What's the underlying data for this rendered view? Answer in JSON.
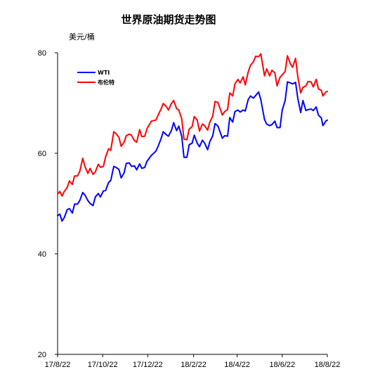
{
  "chart_data": {
    "type": "line",
    "title": "世界原油期货走势图",
    "ylabel": "美元/桶",
    "xlabel": "",
    "ylim": [
      20,
      80
    ],
    "yticks": [
      20,
      40,
      60,
      80
    ],
    "xticks": [
      "17/8/22",
      "17/10/22",
      "17/12/22",
      "18/2/22",
      "18/4/22",
      "18/6/22",
      "18/8/22"
    ],
    "grid": false,
    "legend_position": "top-left",
    "series": [
      {
        "name": "WTI",
        "color": "#0000ff",
        "points": [
          [
            "2017-08-22",
            47.6
          ],
          [
            "2017-08-25",
            47.9
          ],
          [
            "2017-08-28",
            46.5
          ],
          [
            "2017-08-31",
            47.2
          ],
          [
            "2017-09-04",
            48.8
          ],
          [
            "2017-09-07",
            49.0
          ],
          [
            "2017-09-11",
            48.1
          ],
          [
            "2017-09-14",
            49.9
          ],
          [
            "2017-09-18",
            49.9
          ],
          [
            "2017-09-21",
            50.6
          ],
          [
            "2017-09-25",
            52.2
          ],
          [
            "2017-09-28",
            51.7
          ],
          [
            "2017-10-02",
            50.6
          ],
          [
            "2017-10-05",
            50.0
          ],
          [
            "2017-10-09",
            49.6
          ],
          [
            "2017-10-12",
            51.3
          ],
          [
            "2017-10-16",
            52.0
          ],
          [
            "2017-10-19",
            51.3
          ],
          [
            "2017-10-23",
            52.5
          ],
          [
            "2017-10-26",
            52.6
          ],
          [
            "2017-10-30",
            54.2
          ],
          [
            "2017-11-02",
            54.6
          ],
          [
            "2017-11-06",
            57.4
          ],
          [
            "2017-11-09",
            57.2
          ],
          [
            "2017-11-13",
            56.8
          ],
          [
            "2017-11-16",
            55.1
          ],
          [
            "2017-11-20",
            56.1
          ],
          [
            "2017-11-23",
            58.0
          ],
          [
            "2017-11-27",
            58.1
          ],
          [
            "2017-11-30",
            57.4
          ],
          [
            "2017-12-04",
            57.5
          ],
          [
            "2017-12-07",
            56.7
          ],
          [
            "2017-12-11",
            57.9
          ],
          [
            "2017-12-14",
            57.0
          ],
          [
            "2017-12-18",
            57.2
          ],
          [
            "2017-12-21",
            58.4
          ],
          [
            "2017-12-27",
            59.6
          ],
          [
            "2018-01-02",
            60.4
          ],
          [
            "2018-01-05",
            61.4
          ],
          [
            "2018-01-09",
            62.9
          ],
          [
            "2018-01-12",
            64.3
          ],
          [
            "2018-01-16",
            63.7
          ],
          [
            "2018-01-19",
            63.4
          ],
          [
            "2018-01-23",
            64.5
          ],
          [
            "2018-01-26",
            66.1
          ],
          [
            "2018-01-30",
            64.5
          ],
          [
            "2018-02-02",
            65.4
          ],
          [
            "2018-02-06",
            63.4
          ],
          [
            "2018-02-09",
            59.2
          ],
          [
            "2018-02-13",
            59.2
          ],
          [
            "2018-02-16",
            61.7
          ],
          [
            "2018-02-20",
            62.0
          ],
          [
            "2018-02-23",
            63.6
          ],
          [
            "2018-02-27",
            62.0
          ],
          [
            "2018-03-02",
            61.3
          ],
          [
            "2018-03-06",
            62.6
          ],
          [
            "2018-03-09",
            62.0
          ],
          [
            "2018-03-13",
            60.7
          ],
          [
            "2018-03-16",
            62.3
          ],
          [
            "2018-03-20",
            63.5
          ],
          [
            "2018-03-23",
            65.9
          ],
          [
            "2018-03-27",
            65.4
          ],
          [
            "2018-04-02",
            63.0
          ],
          [
            "2018-04-05",
            63.5
          ],
          [
            "2018-04-09",
            63.4
          ],
          [
            "2018-04-12",
            67.1
          ],
          [
            "2018-04-16",
            66.2
          ],
          [
            "2018-04-19",
            68.3
          ],
          [
            "2018-04-23",
            68.6
          ],
          [
            "2018-04-26",
            68.2
          ],
          [
            "2018-04-30",
            68.6
          ],
          [
            "2018-05-03",
            68.4
          ],
          [
            "2018-05-07",
            70.7
          ],
          [
            "2018-05-10",
            71.4
          ],
          [
            "2018-05-14",
            70.96
          ],
          [
            "2018-05-17",
            71.5
          ],
          [
            "2018-05-21",
            72.2
          ],
          [
            "2018-05-24",
            70.7
          ],
          [
            "2018-05-29",
            66.7
          ],
          [
            "2018-06-01",
            65.8
          ],
          [
            "2018-06-05",
            65.5
          ],
          [
            "2018-06-08",
            65.7
          ],
          [
            "2018-06-12",
            66.4
          ],
          [
            "2018-06-15",
            65.1
          ],
          [
            "2018-06-19",
            65.1
          ],
          [
            "2018-06-22",
            68.6
          ],
          [
            "2018-06-26",
            70.5
          ],
          [
            "2018-06-29",
            74.2
          ],
          [
            "2018-07-03",
            74.0
          ],
          [
            "2018-07-06",
            73.8
          ],
          [
            "2018-07-10",
            74.1
          ],
          [
            "2018-07-13",
            71.0
          ],
          [
            "2018-07-17",
            68.1
          ],
          [
            "2018-07-20",
            70.5
          ],
          [
            "2018-07-24",
            68.5
          ],
          [
            "2018-07-27",
            68.7
          ],
          [
            "2018-07-31",
            68.8
          ],
          [
            "2018-08-03",
            68.5
          ],
          [
            "2018-08-07",
            69.2
          ],
          [
            "2018-08-10",
            67.6
          ],
          [
            "2018-08-14",
            67.0
          ],
          [
            "2018-08-16",
            65.5
          ],
          [
            "2018-08-20",
            66.4
          ],
          [
            "2018-08-22",
            66.6
          ]
        ]
      },
      {
        "name": "布伦特",
        "color": "#ff0000",
        "points": [
          [
            "2017-08-22",
            51.9
          ],
          [
            "2017-08-25",
            52.4
          ],
          [
            "2017-08-28",
            51.5
          ],
          [
            "2017-08-31",
            52.4
          ],
          [
            "2017-09-04",
            53.2
          ],
          [
            "2017-09-07",
            54.5
          ],
          [
            "2017-09-11",
            53.8
          ],
          [
            "2017-09-14",
            55.5
          ],
          [
            "2017-09-18",
            55.5
          ],
          [
            "2017-09-21",
            56.4
          ],
          [
            "2017-09-25",
            59.0
          ],
          [
            "2017-09-28",
            57.4
          ],
          [
            "2017-10-02",
            56.0
          ],
          [
            "2017-10-05",
            57.0
          ],
          [
            "2017-10-09",
            55.8
          ],
          [
            "2017-10-12",
            56.3
          ],
          [
            "2017-10-16",
            57.8
          ],
          [
            "2017-10-19",
            57.2
          ],
          [
            "2017-10-23",
            57.4
          ],
          [
            "2017-10-26",
            59.3
          ],
          [
            "2017-10-30",
            60.9
          ],
          [
            "2017-11-02",
            60.6
          ],
          [
            "2017-11-06",
            64.3
          ],
          [
            "2017-11-09",
            63.9
          ],
          [
            "2017-11-13",
            63.2
          ],
          [
            "2017-11-16",
            61.4
          ],
          [
            "2017-11-20",
            62.2
          ],
          [
            "2017-11-23",
            63.5
          ],
          [
            "2017-11-27",
            63.8
          ],
          [
            "2017-11-30",
            63.6
          ],
          [
            "2017-12-04",
            62.5
          ],
          [
            "2017-12-07",
            62.2
          ],
          [
            "2017-12-11",
            64.7
          ],
          [
            "2017-12-14",
            63.3
          ],
          [
            "2017-12-18",
            63.4
          ],
          [
            "2017-12-21",
            64.9
          ],
          [
            "2017-12-27",
            66.4
          ],
          [
            "2018-01-02",
            66.6
          ],
          [
            "2018-01-05",
            67.6
          ],
          [
            "2018-01-09",
            68.8
          ],
          [
            "2018-01-12",
            69.9
          ],
          [
            "2018-01-16",
            69.3
          ],
          [
            "2018-01-19",
            68.6
          ],
          [
            "2018-01-23",
            69.9
          ],
          [
            "2018-01-26",
            70.5
          ],
          [
            "2018-01-30",
            68.9
          ],
          [
            "2018-02-02",
            68.6
          ],
          [
            "2018-02-06",
            66.9
          ],
          [
            "2018-02-09",
            62.8
          ],
          [
            "2018-02-13",
            62.7
          ],
          [
            "2018-02-16",
            64.8
          ],
          [
            "2018-02-20",
            65.3
          ],
          [
            "2018-02-23",
            67.3
          ],
          [
            "2018-02-27",
            66.6
          ],
          [
            "2018-03-02",
            64.4
          ],
          [
            "2018-03-06",
            65.8
          ],
          [
            "2018-03-09",
            65.5
          ],
          [
            "2018-03-13",
            64.6
          ],
          [
            "2018-03-16",
            66.2
          ],
          [
            "2018-03-20",
            67.4
          ],
          [
            "2018-03-23",
            70.3
          ],
          [
            "2018-03-27",
            70.1
          ],
          [
            "2018-04-02",
            67.6
          ],
          [
            "2018-04-05",
            68.3
          ],
          [
            "2018-04-09",
            68.7
          ],
          [
            "2018-04-12",
            72.0
          ],
          [
            "2018-04-16",
            71.4
          ],
          [
            "2018-04-19",
            73.8
          ],
          [
            "2018-04-23",
            74.7
          ],
          [
            "2018-04-26",
            74.0
          ],
          [
            "2018-04-30",
            75.2
          ],
          [
            "2018-05-03",
            73.6
          ],
          [
            "2018-05-07",
            76.2
          ],
          [
            "2018-05-10",
            77.5
          ],
          [
            "2018-05-14",
            78.2
          ],
          [
            "2018-05-17",
            79.3
          ],
          [
            "2018-05-21",
            79.2
          ],
          [
            "2018-05-24",
            79.8
          ],
          [
            "2018-05-29",
            75.4
          ],
          [
            "2018-06-01",
            76.8
          ],
          [
            "2018-06-05",
            75.4
          ],
          [
            "2018-06-08",
            76.5
          ],
          [
            "2018-06-12",
            76.0
          ],
          [
            "2018-06-15",
            73.4
          ],
          [
            "2018-06-19",
            75.1
          ],
          [
            "2018-06-22",
            75.6
          ],
          [
            "2018-06-26",
            76.3
          ],
          [
            "2018-06-29",
            79.4
          ],
          [
            "2018-07-03",
            77.8
          ],
          [
            "2018-07-06",
            77.1
          ],
          [
            "2018-07-10",
            78.9
          ],
          [
            "2018-07-13",
            75.3
          ],
          [
            "2018-07-17",
            72.0
          ],
          [
            "2018-07-20",
            73.1
          ],
          [
            "2018-07-24",
            73.4
          ],
          [
            "2018-07-27",
            74.3
          ],
          [
            "2018-07-31",
            74.2
          ],
          [
            "2018-08-03",
            73.2
          ],
          [
            "2018-08-07",
            74.7
          ],
          [
            "2018-08-10",
            72.8
          ],
          [
            "2018-08-14",
            72.5
          ],
          [
            "2018-08-16",
            71.4
          ],
          [
            "2018-08-20",
            72.2
          ],
          [
            "2018-08-22",
            72.3
          ]
        ]
      }
    ]
  }
}
